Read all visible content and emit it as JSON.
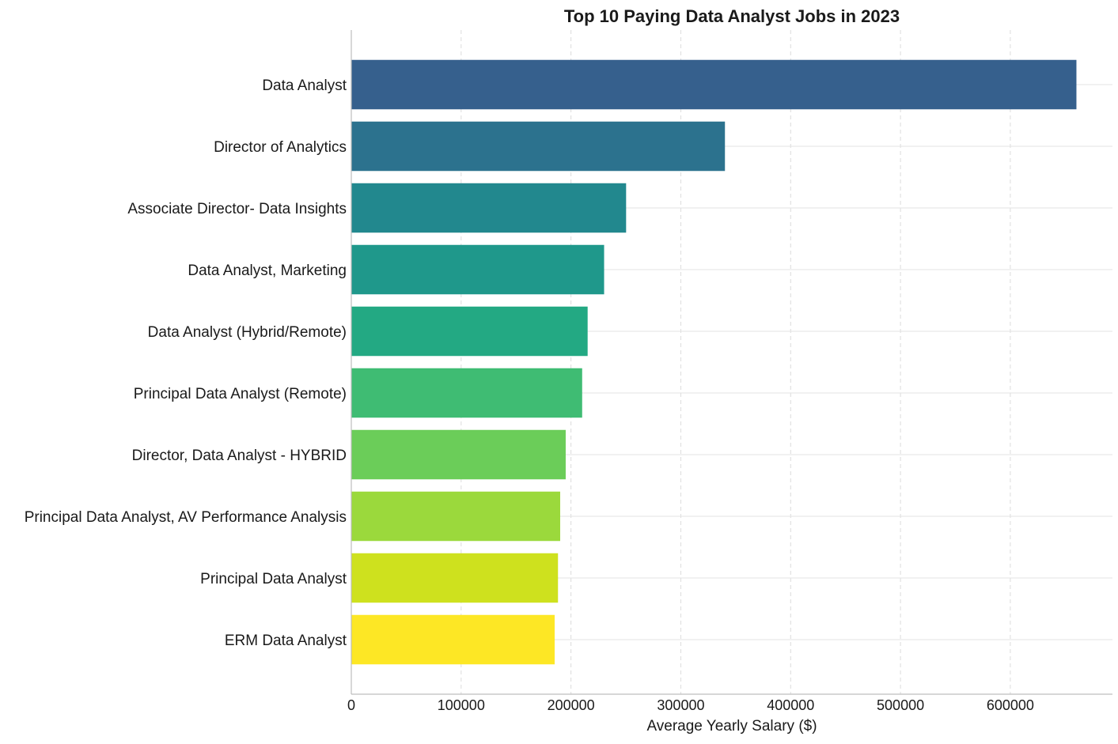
{
  "chart_data": {
    "type": "bar",
    "orientation": "horizontal",
    "title": "Top 10 Paying Data Analyst Jobs in 2023",
    "xlabel": "Average Yearly Salary ($)",
    "ylabel": "",
    "xlim": [
      0,
      693000
    ],
    "xticks": [
      0,
      100000,
      200000,
      300000,
      400000,
      500000,
      600000
    ],
    "xtick_labels": [
      "0",
      "100000",
      "200000",
      "300000",
      "400000",
      "500000",
      "600000"
    ],
    "grid": true,
    "categories": [
      "Data Analyst",
      "Director of Analytics",
      "Associate Director- Data Insights",
      "Data Analyst, Marketing",
      "Data Analyst (Hybrid/Remote)",
      "Principal Data Analyst (Remote)",
      "Director, Data Analyst - HYBRID",
      "Principal Data Analyst, AV Performance Analysis",
      "Principal Data Analyst",
      "ERM Data Analyst"
    ],
    "values": [
      660000,
      340000,
      250000,
      230000,
      215000,
      210000,
      195000,
      190000,
      188000,
      185000
    ],
    "colors": [
      "#36608d",
      "#2c728e",
      "#22888e",
      "#1f988b",
      "#23a983",
      "#3fbc73",
      "#6bcd59",
      "#9bd93c",
      "#cee11e",
      "#fde725"
    ]
  }
}
